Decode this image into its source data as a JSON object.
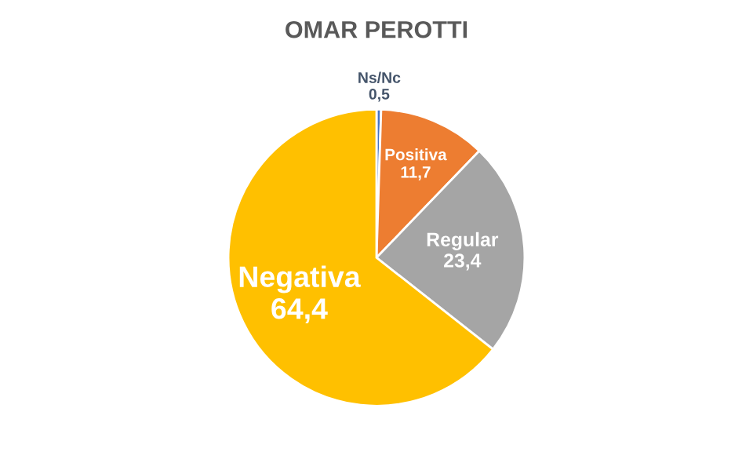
{
  "chart_data": {
    "type": "pie",
    "title": "OMAR PEROTTI",
    "categories": [
      "Ns/Nc",
      "Positiva",
      "Regular",
      "Negativa"
    ],
    "values": [
      0.5,
      11.7,
      23.4,
      64.4
    ],
    "value_labels": [
      "0,5",
      "11,7",
      "23,4",
      "64,4"
    ],
    "colors": [
      "#4472c4",
      "#ed7d31",
      "#a5a5a5",
      "#ffc000"
    ],
    "legend": false
  }
}
